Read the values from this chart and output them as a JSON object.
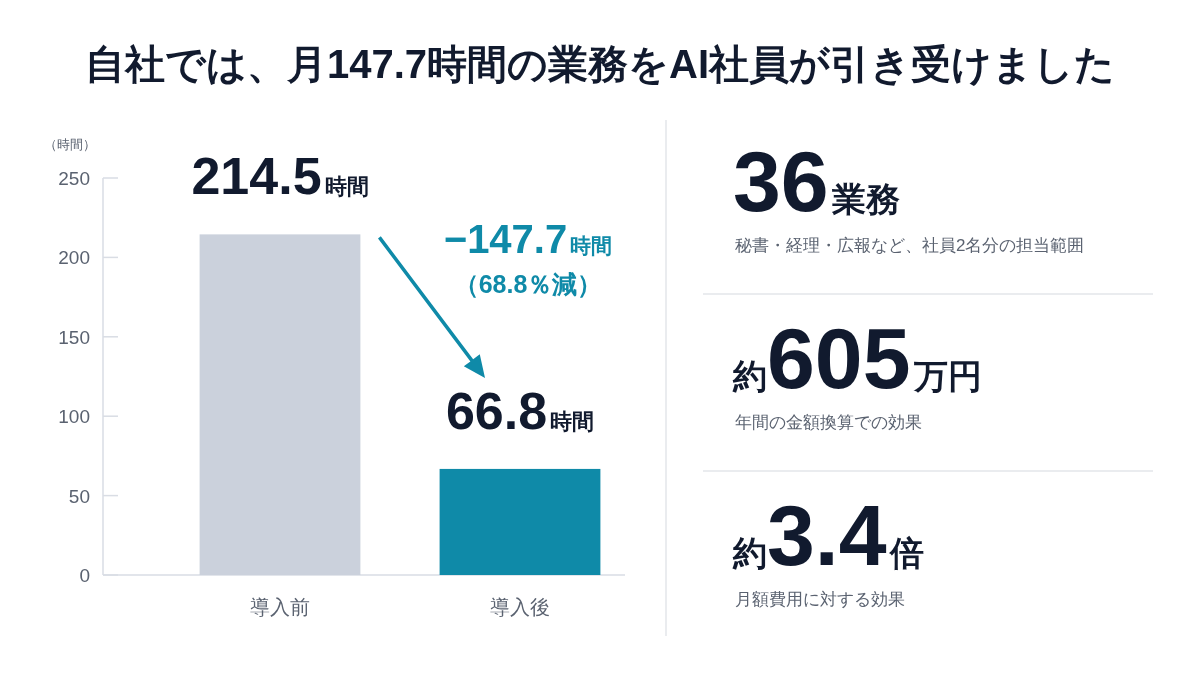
{
  "chart_data": [
    {
      "type": "bar",
      "title": "自社では、月147.7時間の業務をAI社員が引き受けました",
      "ylabel": "（時間）",
      "categories": [
        "導入前",
        "導入後"
      ],
      "values": [
        214.5,
        66.8
      ],
      "colors": [
        "#cbd1dc",
        "#0f8aa8"
      ],
      "value_labels": [
        "214.5時間",
        "66.8時間"
      ],
      "ylim": [
        0,
        250
      ],
      "yticks": [
        0,
        50,
        100,
        150,
        200,
        250
      ],
      "annotations": [
        "−147.7時間",
        "（68.8％減）"
      ]
    },
    {
      "type": "other",
      "annotations": [
        "36業務",
        "秘書・経理・広報など、社員2名分の担当範囲",
        "約605万円",
        "年間の金額換算での効果",
        "約3.4倍",
        "月額費用に対する効果"
      ]
    }
  ]
}
